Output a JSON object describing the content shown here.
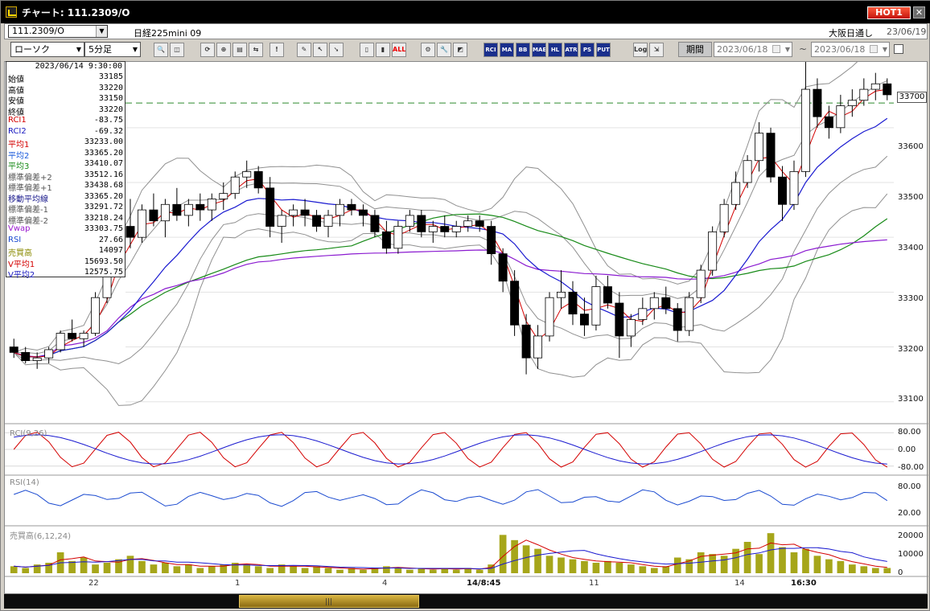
{
  "window": {
    "title": "チャート: 111.2309/O",
    "hot_label": "HOT1",
    "close_label": "✕"
  },
  "symbol_bar": {
    "symbol_code": "111.2309/O",
    "symbol_name": "日経225mini 09",
    "exchange": "大阪日通し",
    "date": "23/06/19"
  },
  "toolbar": {
    "chart_type": "ローソク",
    "interval": "5分足",
    "buttons": [
      {
        "name": "zoom-icon",
        "label": "🔍"
      },
      {
        "name": "split-icon",
        "label": "◫"
      },
      {
        "name": "refresh-icon",
        "label": "⟳"
      },
      {
        "name": "zoom-in-icon",
        "label": "⊕"
      },
      {
        "name": "chart-bar-icon",
        "label": "▤"
      },
      {
        "name": "pair-icon",
        "label": "⇆"
      },
      {
        "name": "alert-icon",
        "label": "!"
      },
      {
        "name": "pencil-icon",
        "label": "✎"
      },
      {
        "name": "cursor-icon",
        "label": "↖"
      },
      {
        "name": "arrow-icon",
        "label": "➘"
      },
      {
        "name": "candle-icon",
        "label": "▯"
      },
      {
        "name": "candle2-icon",
        "label": "▮"
      },
      {
        "name": "all-icon",
        "label": "ALL"
      },
      {
        "name": "settings-icon",
        "label": "⚙"
      },
      {
        "name": "wrench-icon",
        "label": "🔧"
      },
      {
        "name": "color-icon",
        "label": "◩"
      },
      {
        "name": "rci-icon",
        "label": "RCI"
      },
      {
        "name": "ma-icon",
        "label": "MA"
      },
      {
        "name": "bb-icon",
        "label": "BB"
      },
      {
        "name": "mae-icon",
        "label": "MAE"
      },
      {
        "name": "hl-icon",
        "label": "HL"
      },
      {
        "name": "atr-icon",
        "label": "ATR"
      },
      {
        "name": "ps-icon",
        "label": "PS"
      },
      {
        "name": "put-icon",
        "label": "PUT"
      },
      {
        "name": "log-icon",
        "label": "Log"
      },
      {
        "name": "export-icon",
        "label": "⇲"
      }
    ],
    "period_label": "期間",
    "date_from": "2023/06/18",
    "date_to": "2023/06/18",
    "tilde": "~"
  },
  "info_panel": {
    "datetime": "2023/06/14 9:30:00",
    "rows": [
      {
        "label": "始値",
        "value": "33185",
        "color": "#000000"
      },
      {
        "label": "高値",
        "value": "33220",
        "color": "#000000"
      },
      {
        "label": "安値",
        "value": "33150",
        "color": "#000000"
      },
      {
        "label": "終値",
        "value": "33220",
        "color": "#000000"
      },
      {
        "label": "RCI1",
        "value": "-83.75",
        "color": "#d40000"
      },
      {
        "label": "RCI2",
        "value": "-69.32",
        "color": "#1a1ac0"
      },
      {
        "label": "平均1",
        "value": "33233.00",
        "color": "#d40000"
      },
      {
        "label": "平均2",
        "value": "33365.20",
        "color": "#1a5adc"
      },
      {
        "label": "平均3",
        "value": "33410.07",
        "color": "#178a17"
      },
      {
        "label": "標準偏差+2",
        "value": "33512.16",
        "color": "#555555"
      },
      {
        "label": "標準偏差+1",
        "value": "33438.68",
        "color": "#555555"
      },
      {
        "label": "移動平均線",
        "value": "33365.20",
        "color": "#1a1a8c"
      },
      {
        "label": "標準偏差-1",
        "value": "33291.72",
        "color": "#555555"
      },
      {
        "label": "標準偏差-2",
        "value": "33218.24",
        "color": "#555555"
      },
      {
        "label": "Vwap",
        "value": "33303.75",
        "color": "#9a1ad0"
      },
      {
        "label": "RSI",
        "value": "27.66",
        "color": "#1a4ad0"
      },
      {
        "label": "売買高",
        "value": "14097",
        "color": "#8a8a00"
      },
      {
        "label": "V平均1",
        "value": "15693.50",
        "color": "#d40000"
      },
      {
        "label": "V平均2",
        "value": "12575.75",
        "color": "#1a1ac0"
      }
    ]
  },
  "price_axis": {
    "labels": [
      "33700",
      "33600",
      "33500",
      "33400",
      "33300",
      "33200",
      "33100"
    ],
    "current": "33700"
  },
  "subpanels": {
    "rci": {
      "title": "RCI(9,26)",
      "levels": [
        "80.00",
        "0.00",
        "-80.00"
      ]
    },
    "rsi": {
      "title": "RSI(14)",
      "levels": [
        "80.00",
        "20.00"
      ]
    },
    "volume": {
      "title": "売買高(6,12,24)",
      "levels": [
        "20000",
        "10000",
        "0"
      ]
    }
  },
  "x_axis": {
    "labels": [
      {
        "text": "22",
        "bold": false
      },
      {
        "text": "1",
        "bold": false
      },
      {
        "text": "4",
        "bold": false
      },
      {
        "text": "14/8:45",
        "bold": true
      },
      {
        "text": "11",
        "bold": false
      },
      {
        "text": "14",
        "bold": false
      },
      {
        "text": "16:30",
        "bold": true
      }
    ]
  },
  "colors": {
    "candle_up": "#ffffff",
    "candle_down": "#000000",
    "ma1": "#d40000",
    "ma2": "#1a1ad0",
    "ma3": "#178a17",
    "bb": "#909090",
    "vwap": "#8a1ad0",
    "rsi": "#1a4ad0",
    "volume": "#a6a61a",
    "dashed": "#2d8a2d"
  },
  "chart_data": {
    "type": "candlestick",
    "price_range": [
      33060,
      33720
    ],
    "reference_level": 33645,
    "candles": [
      [
        33200,
        33215,
        33180,
        33190
      ],
      [
        33190,
        33200,
        33170,
        33175
      ],
      [
        33175,
        33190,
        33160,
        33180
      ],
      [
        33180,
        33200,
        33170,
        33195
      ],
      [
        33195,
        33230,
        33190,
        33225
      ],
      [
        33225,
        33250,
        33210,
        33215
      ],
      [
        33215,
        33230,
        33200,
        33225
      ],
      [
        33225,
        33300,
        33220,
        33290
      ],
      [
        33290,
        33350,
        33280,
        33340
      ],
      [
        33340,
        33430,
        33330,
        33420
      ],
      [
        33420,
        33470,
        33380,
        33400
      ],
      [
        33400,
        33460,
        33390,
        33450
      ],
      [
        33450,
        33480,
        33420,
        33430
      ],
      [
        33430,
        33470,
        33400,
        33460
      ],
      [
        33460,
        33490,
        33430,
        33440
      ],
      [
        33440,
        33470,
        33420,
        33460
      ],
      [
        33460,
        33480,
        33430,
        33450
      ],
      [
        33450,
        33480,
        33430,
        33470
      ],
      [
        33470,
        33500,
        33450,
        33480
      ],
      [
        33480,
        33520,
        33470,
        33510
      ],
      [
        33510,
        33540,
        33490,
        33520
      ],
      [
        33520,
        33530,
        33480,
        33490
      ],
      [
        33490,
        33510,
        33400,
        33420
      ],
      [
        33420,
        33450,
        33390,
        33440
      ],
      [
        33440,
        33460,
        33420,
        33450
      ],
      [
        33450,
        33470,
        33420,
        33440
      ],
      [
        33440,
        33450,
        33410,
        33420
      ],
      [
        33420,
        33450,
        33400,
        33440
      ],
      [
        33440,
        33470,
        33420,
        33460
      ],
      [
        33460,
        33470,
        33440,
        33450
      ],
      [
        33450,
        33460,
        33420,
        33440
      ],
      [
        33440,
        33450,
        33400,
        33410
      ],
      [
        33410,
        33430,
        33370,
        33380
      ],
      [
        33380,
        33430,
        33370,
        33420
      ],
      [
        33420,
        33450,
        33410,
        33440
      ],
      [
        33440,
        33450,
        33400,
        33410
      ],
      [
        33410,
        33430,
        33390,
        33420
      ],
      [
        33420,
        33440,
        33400,
        33410
      ],
      [
        33410,
        33430,
        33400,
        33420
      ],
      [
        33420,
        33440,
        33410,
        33430
      ],
      [
        33430,
        33440,
        33410,
        33420
      ],
      [
        33420,
        33430,
        33350,
        33370
      ],
      [
        33370,
        33380,
        33300,
        33320
      ],
      [
        33320,
        33340,
        33220,
        33240
      ],
      [
        33240,
        33260,
        33150,
        33180
      ],
      [
        33180,
        33240,
        33160,
        33220
      ],
      [
        33220,
        33300,
        33210,
        33290
      ],
      [
        33290,
        33340,
        33270,
        33300
      ],
      [
        33300,
        33320,
        33240,
        33260
      ],
      [
        33260,
        33290,
        33220,
        33240
      ],
      [
        33240,
        33330,
        33230,
        33310
      ],
      [
        33310,
        33330,
        33270,
        33280
      ],
      [
        33280,
        33300,
        33180,
        33220
      ],
      [
        33220,
        33260,
        33200,
        33250
      ],
      [
        33250,
        33290,
        33240,
        33270
      ],
      [
        33270,
        33300,
        33250,
        33290
      ],
      [
        33290,
        33310,
        33260,
        33270
      ],
      [
        33270,
        33280,
        33210,
        33230
      ],
      [
        33230,
        33300,
        33220,
        33290
      ],
      [
        33290,
        33350,
        33280,
        33340
      ],
      [
        33340,
        33420,
        33330,
        33410
      ],
      [
        33410,
        33470,
        33400,
        33460
      ],
      [
        33460,
        33520,
        33450,
        33500
      ],
      [
        33500,
        33550,
        33490,
        33540
      ],
      [
        33540,
        33610,
        33520,
        33590
      ],
      [
        33590,
        33600,
        33500,
        33510
      ],
      [
        33510,
        33530,
        33430,
        33460
      ],
      [
        33460,
        33540,
        33450,
        33520
      ],
      [
        33520,
        33720,
        33510,
        33670
      ],
      [
        33670,
        33690,
        33600,
        33620
      ],
      [
        33620,
        33640,
        33580,
        33600
      ],
      [
        33600,
        33660,
        33590,
        33640
      ],
      [
        33640,
        33670,
        33620,
        33650
      ],
      [
        33650,
        33690,
        33640,
        33670
      ],
      [
        33670,
        33700,
        33650,
        33680
      ],
      [
        33680,
        33690,
        33650,
        33660
      ]
    ],
    "volume": [
      4000,
      3000,
      5000,
      6000,
      12000,
      7000,
      9000,
      5000,
      6000,
      8000,
      10000,
      7000,
      5000,
      6000,
      4000,
      5000,
      3000,
      4000,
      5000,
      6000,
      5000,
      4000,
      3000,
      5000,
      4000,
      3000,
      4000,
      3000,
      2000,
      3000,
      2000,
      3000,
      4000,
      3000,
      2000,
      3000,
      2000,
      3000,
      2000,
      3000,
      2000,
      5000,
      22000,
      19000,
      16000,
      14000,
      10000,
      9000,
      8000,
      7000,
      6000,
      7000,
      6000,
      5000,
      4000,
      3000,
      4000,
      9000,
      8000,
      12000,
      11000,
      10000,
      14000,
      18000,
      11000,
      23000,
      15000,
      12000,
      14000,
      10000,
      8000,
      7000,
      5000,
      4000,
      3000,
      3000
    ]
  }
}
